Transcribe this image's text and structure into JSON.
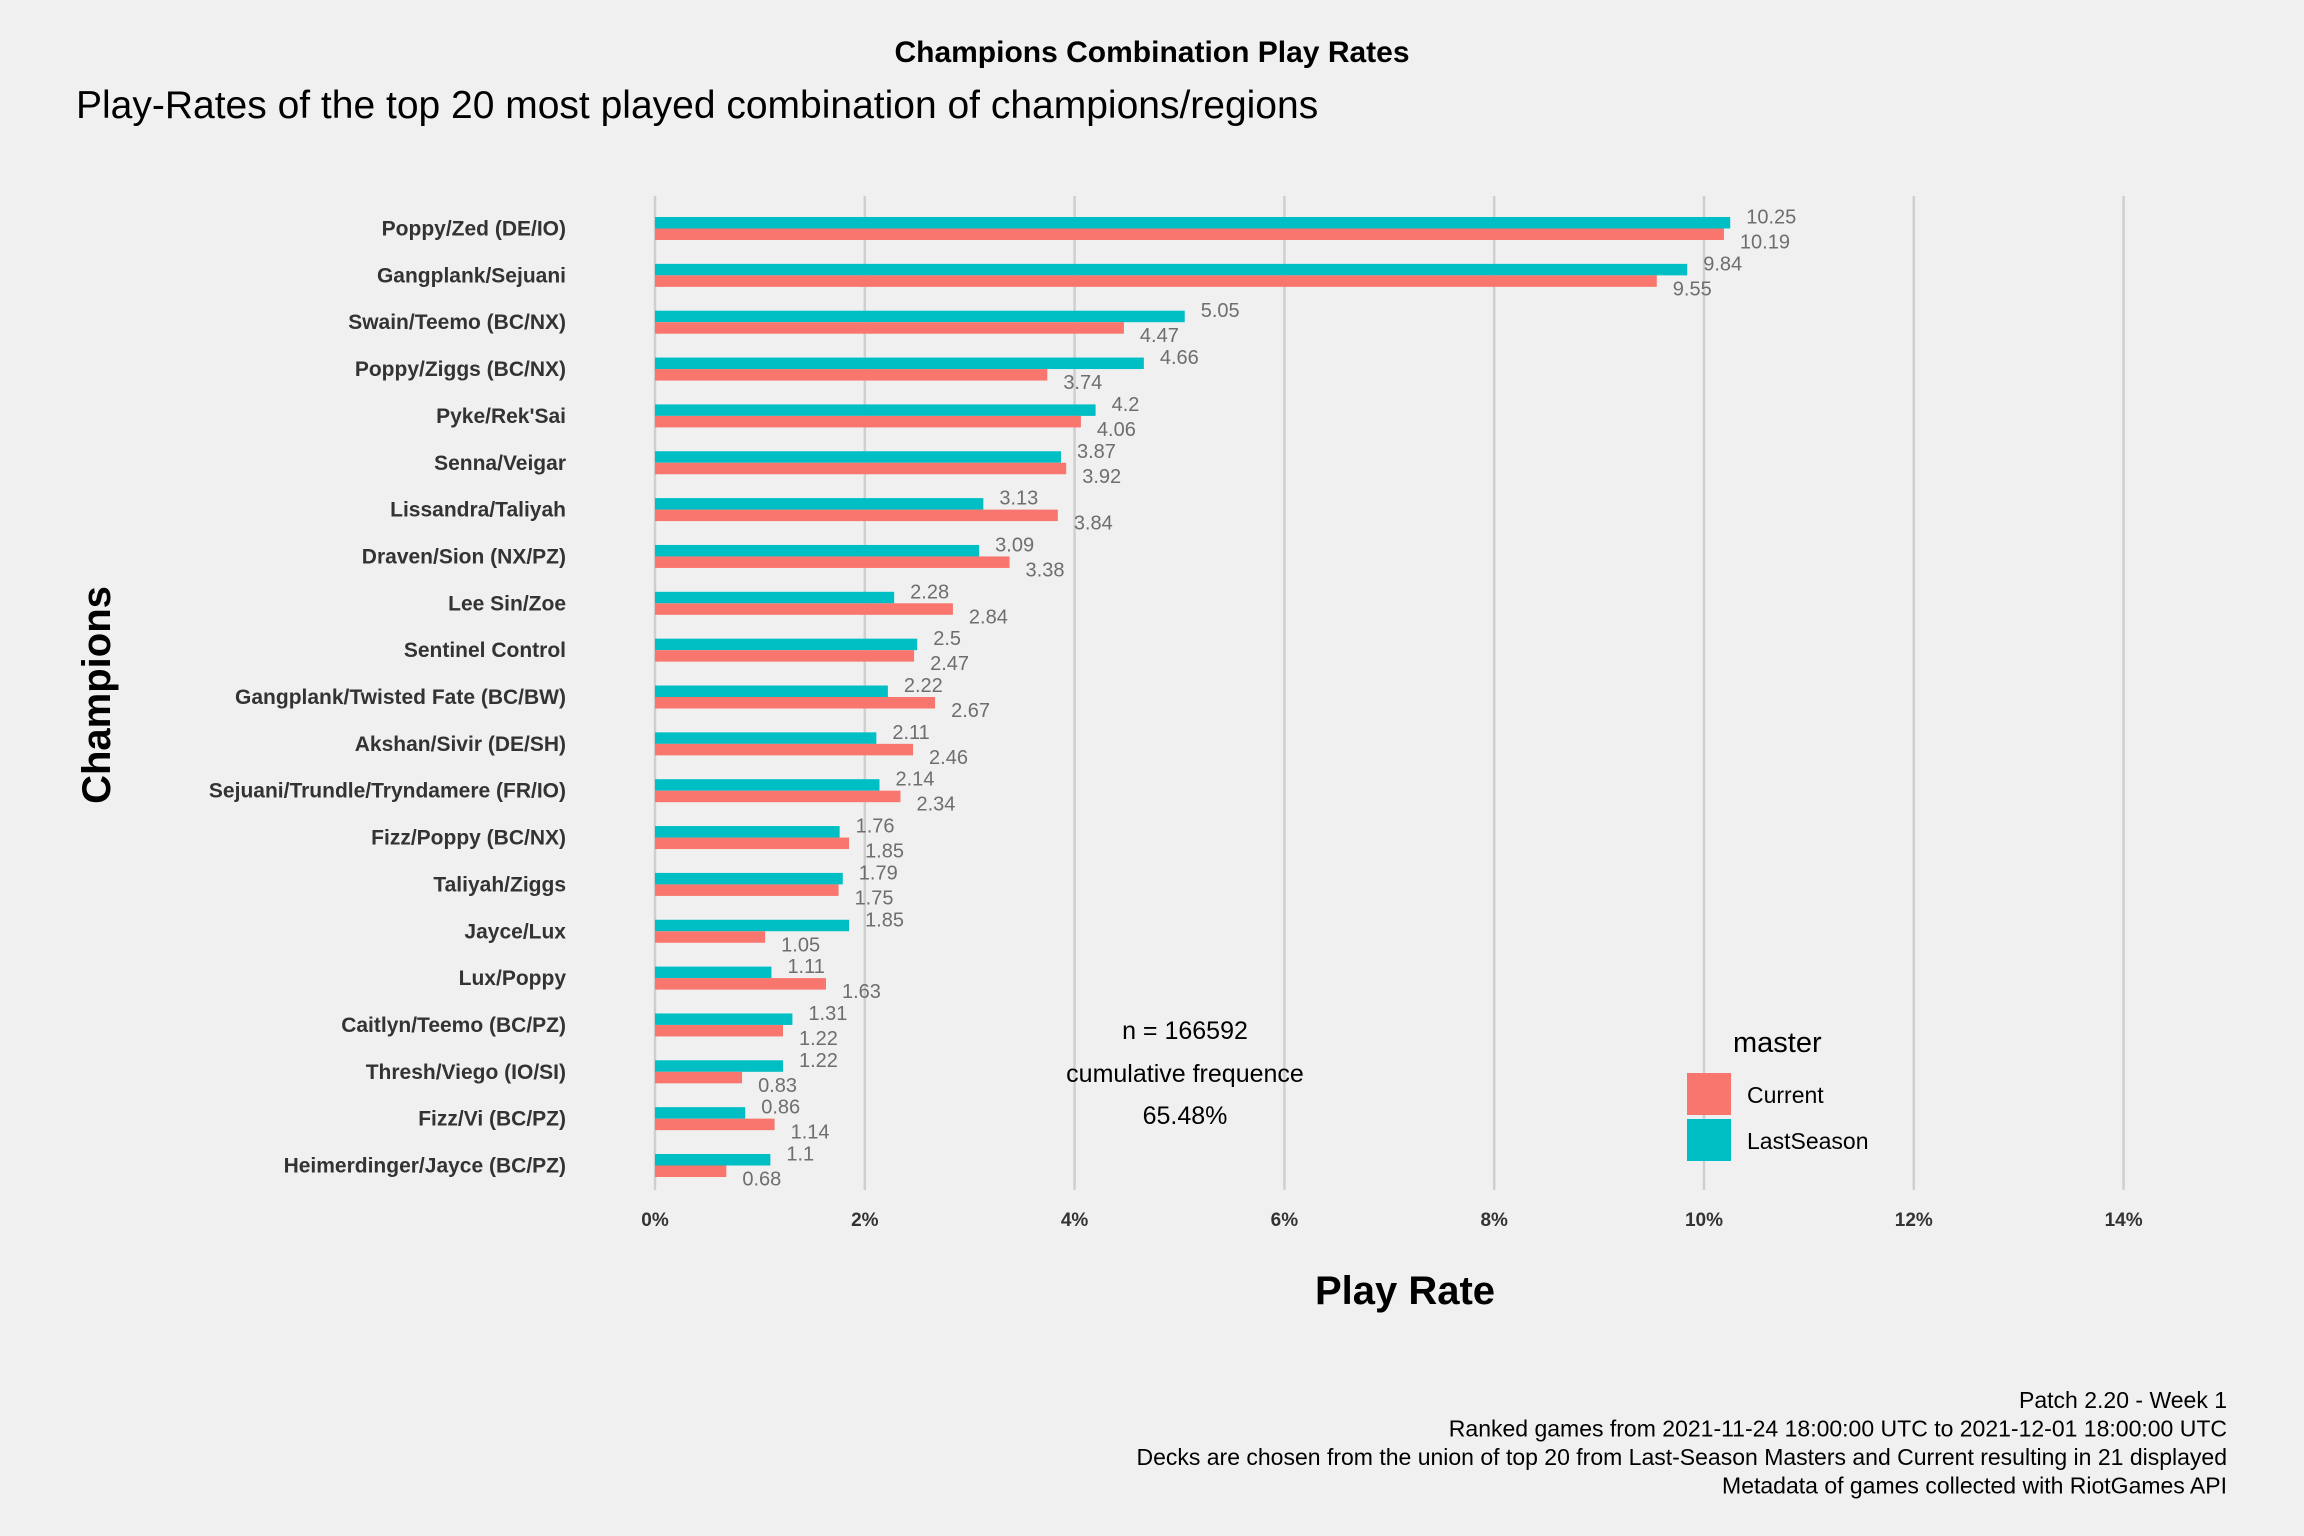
{
  "chart_data": {
    "type": "bar",
    "orientation": "horizontal",
    "title": "Champions Combination Play Rates",
    "subtitle": "Play-Rates of the top 20 most played combination of champions/regions",
    "xlabel": "Play Rate",
    "ylabel": "Champions",
    "xlim": [
      0,
      14
    ],
    "x_ticks": [
      "0%",
      "2%",
      "4%",
      "6%",
      "8%",
      "10%",
      "12%",
      "14%"
    ],
    "x_tick_values": [
      0,
      2,
      4,
      6,
      8,
      10,
      12,
      14
    ],
    "grid": true,
    "categories": [
      "Poppy/Zed (DE/IO)",
      "Gangplank/Sejuani",
      "Swain/Teemo (BC/NX)",
      "Poppy/Ziggs (BC/NX)",
      "Pyke/Rek'Sai",
      "Senna/Veigar",
      "Lissandra/Taliyah",
      "Draven/Sion (NX/PZ)",
      "Lee Sin/Zoe",
      "Sentinel Control",
      "Gangplank/Twisted Fate (BC/BW)",
      "Akshan/Sivir (DE/SH)",
      "Sejuani/Trundle/Tryndamere (FR/IO)",
      "Fizz/Poppy (BC/NX)",
      "Taliyah/Ziggs",
      "Jayce/Lux",
      "Lux/Poppy",
      "Caitlyn/Teemo (BC/PZ)",
      "Thresh/Viego (IO/SI)",
      "Fizz/Vi (BC/PZ)",
      "Heimerdinger/Jayce (BC/PZ)"
    ],
    "series": [
      {
        "name": "LastSeason",
        "color": "#00bfc4",
        "values": [
          10.25,
          9.84,
          5.05,
          4.66,
          4.2,
          3.87,
          3.13,
          3.09,
          2.28,
          2.5,
          2.22,
          2.11,
          2.14,
          1.76,
          1.79,
          1.85,
          1.11,
          1.31,
          1.22,
          0.86,
          1.1
        ],
        "labels": [
          "10.25",
          "9.84",
          "5.05",
          "4.66",
          "4.2",
          "3.87",
          "3.13",
          "3.09",
          "2.28",
          "2.5",
          "2.22",
          "2.11",
          "2.14",
          "1.76",
          "1.79",
          "1.85",
          "1.11",
          "1.31",
          "1.22",
          "0.86",
          "1.1"
        ]
      },
      {
        "name": "Current",
        "color": "#f8766d",
        "values": [
          10.19,
          9.55,
          4.47,
          3.74,
          4.06,
          3.92,
          3.84,
          3.38,
          2.84,
          2.47,
          2.67,
          2.46,
          2.34,
          1.85,
          1.75,
          1.05,
          1.63,
          1.22,
          0.83,
          1.14,
          0.68
        ],
        "labels": [
          "10.19",
          "9.55",
          "4.47",
          "3.74",
          "4.06",
          "3.92",
          "3.84",
          "3.38",
          "2.84",
          "2.47",
          "2.67",
          "2.46",
          "2.34",
          "1.85",
          "1.75",
          "1.05",
          "1.63",
          "1.22",
          "0.83",
          "1.14",
          "0.68"
        ]
      }
    ],
    "legend": {
      "title": "master",
      "position": "right",
      "items": [
        {
          "name": "Current",
          "color": "#f8766d"
        },
        {
          "name": "LastSeason",
          "color": "#00bfc4"
        }
      ]
    },
    "annotation": [
      "n = 166592",
      "cumulative frequence",
      "65.48%"
    ],
    "caption": [
      "Patch 2.20 - Week 1",
      "Ranked games from 2021-11-24 18:00:00 UTC to 2021-12-01 18:00:00 UTC",
      "Decks are chosen from the union of top 20 from Last-Season Masters and Current resulting in 21 displayed",
      "Metadata of games collected with RiotGames API"
    ]
  }
}
